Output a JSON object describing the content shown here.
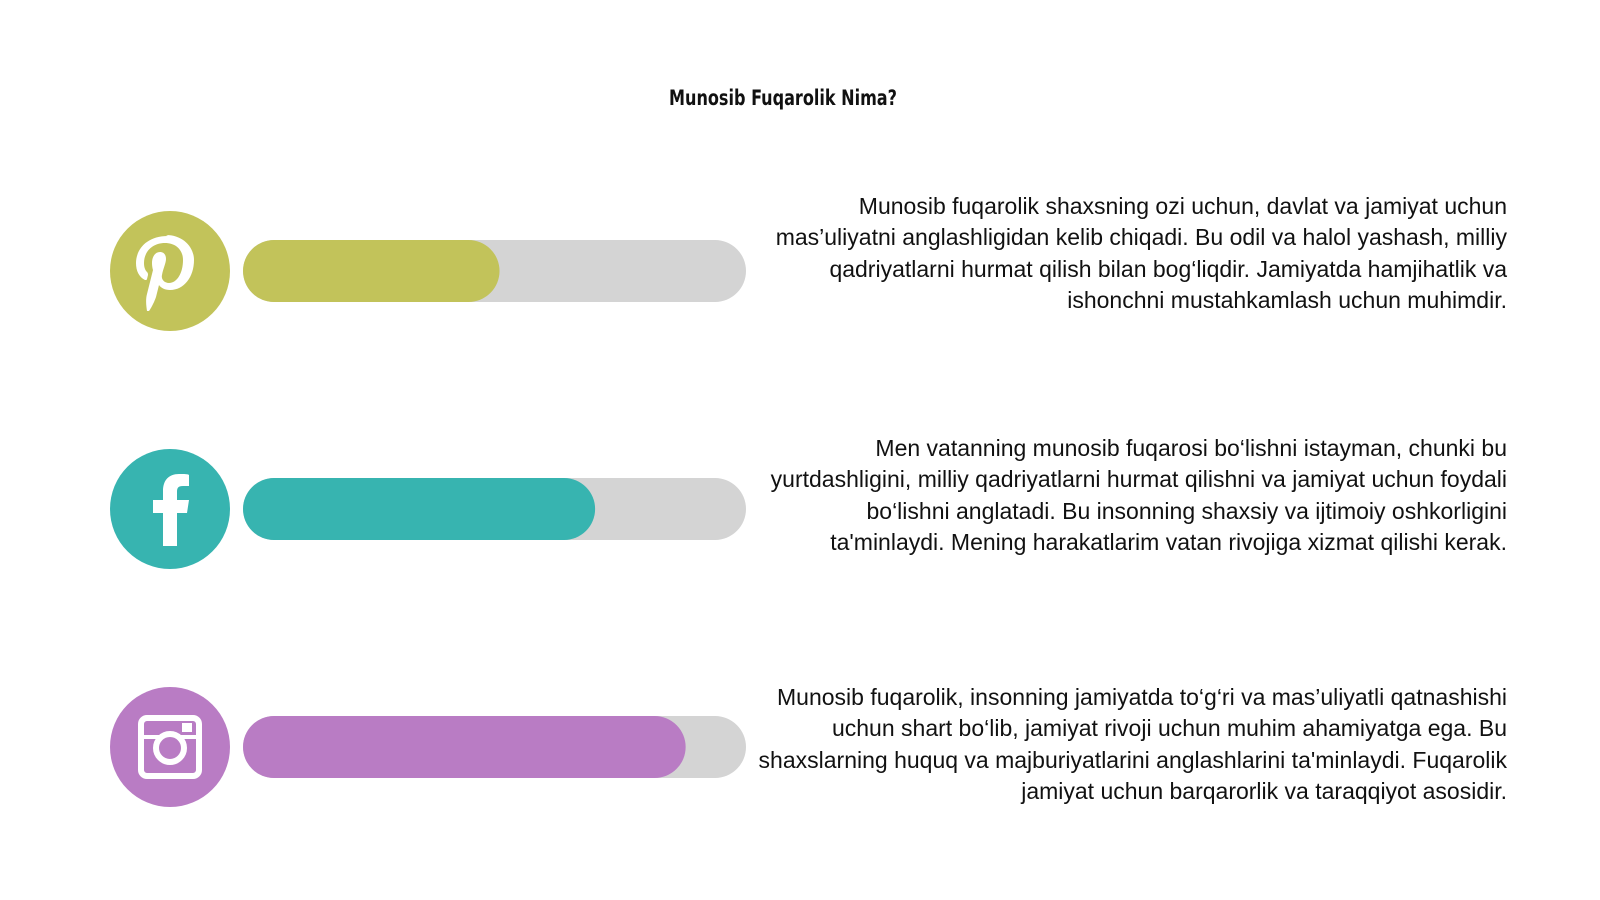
{
  "title": "Munosib Fuqarolik Nima?",
  "bars": {
    "xlim": [
      0,
      100
    ],
    "items": [
      {
        "value": 51,
        "color": "#c2c35a",
        "text": "Munosib fuqarolik shaxsning ozi uchun, davlat va jamiyat uchun mas’uliyatni anglashligidan kelib chiqadi. Bu odil va halol yashash, milliy qadriyatlarni hurmat qilish bilan bog‘liqdir. Jamiyatda hamjihatlik va ishonchni mustahkamlash uchun muhimdir."
      },
      {
        "value": 70,
        "color": "#37b4b0",
        "text": "Men vatanning munosib fuqarosi bo‘lishni istayman, chunki bu yurtdashligini, milliy qadriyatlarni hurmat qilishni va jamiyat uchun foydali bo‘lishni anglatadi. Bu insonning shaxsiy va ijtimoiy oshkorligini ta'minlaydi. Mening harakatlarim vatan rivojiga xizmat qilishi kerak."
      },
      {
        "value": 88,
        "color": "#b97cc4",
        "text": "Munosib fuqarolik, insonning jamiyatda to‘g‘ri va mas’uliyatli qatnashishi uchun shart bo‘lib, jamiyat rivoji uchun muhim ahamiyatga ega. Bu shaxslarning huquq va majburiyatlarini anglashlarini ta'minlaydi. Fuqarolik jamiyat uchun barqarorlik va taraqqiyot asosidir."
      }
    ]
  }
}
